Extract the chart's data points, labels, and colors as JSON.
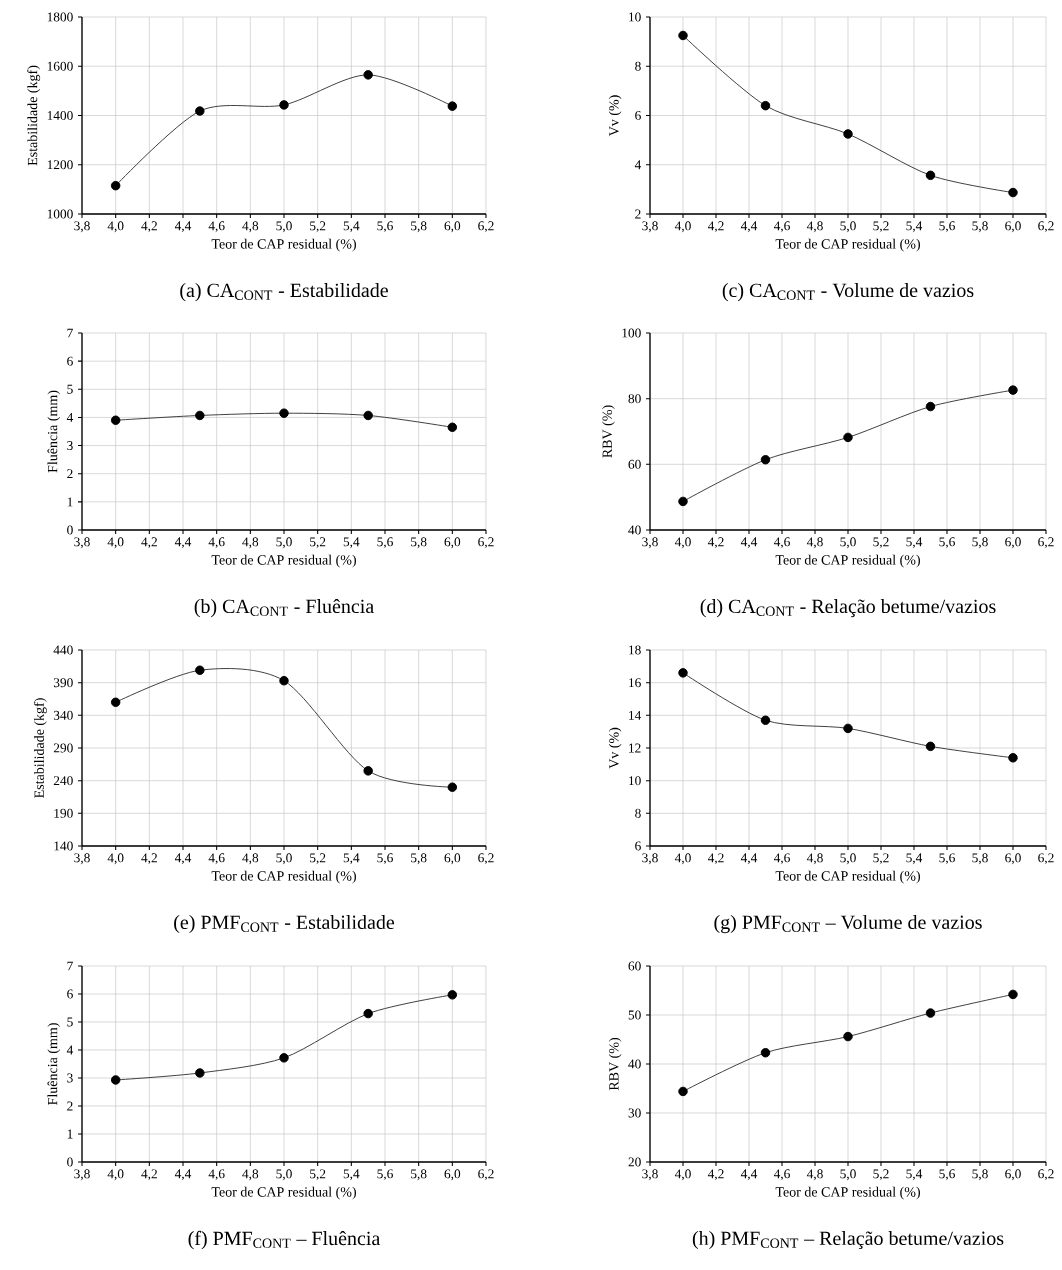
{
  "chart_data": [
    {
      "type": "line",
      "title": "(a) CA$_{CONT}$ - Estabilidade",
      "xlabel": "Teor de CAP residual (%)",
      "ylabel": "Estabilidade (kgf)",
      "x": [
        4.0,
        4.5,
        5.0,
        5.5,
        6.0
      ],
      "values": [
        1115,
        1418,
        1443,
        1565,
        1438
      ],
      "color": "#333333",
      "marker": "circle",
      "grid": true,
      "xlim": [
        3.8,
        6.2
      ],
      "xticks": [
        {
          "value": 3.8,
          "label": "3,8"
        },
        {
          "value": 4.0,
          "label": "4,0"
        },
        {
          "value": 4.2,
          "label": "4,2"
        },
        {
          "value": 4.4,
          "label": "4,4"
        },
        {
          "value": 4.6,
          "label": "4,6"
        },
        {
          "value": 4.8,
          "label": "4,8"
        },
        {
          "value": 5.0,
          "label": "5,0"
        },
        {
          "value": 5.2,
          "label": "5,2"
        },
        {
          "value": 5.4,
          "label": "5,4"
        },
        {
          "value": 5.6,
          "label": "5,6"
        },
        {
          "value": 5.8,
          "label": "5,8"
        },
        {
          "value": 6.0,
          "label": "6,0"
        },
        {
          "value": 6.2,
          "label": "6,2"
        }
      ],
      "ylim": [
        1000,
        1800
      ],
      "yticks": [
        1000,
        1200,
        1400,
        1600,
        1800
      ]
    },
    {
      "type": "line",
      "title": "(c) CA$_{CONT}$ - Volume de vazios",
      "xlabel": "Teor de CAP residual (%)",
      "ylabel": "Vv (%)",
      "x": [
        4.0,
        4.5,
        5.0,
        5.5,
        6.0
      ],
      "values": [
        9.25,
        6.4,
        5.25,
        3.57,
        2.87
      ],
      "color": "#333333",
      "marker": "circle",
      "grid": true,
      "xlim": [
        3.8,
        6.2
      ],
      "xticks": [
        {
          "value": 3.8,
          "label": "3,8"
        },
        {
          "value": 4.0,
          "label": "4,0"
        },
        {
          "value": 4.2,
          "label": "4,2"
        },
        {
          "value": 4.4,
          "label": "4,4"
        },
        {
          "value": 4.6,
          "label": "4,6"
        },
        {
          "value": 4.8,
          "label": "4,8"
        },
        {
          "value": 5.0,
          "label": "5,0"
        },
        {
          "value": 5.2,
          "label": "5,2"
        },
        {
          "value": 5.4,
          "label": "5,4"
        },
        {
          "value": 5.6,
          "label": "5,6"
        },
        {
          "value": 5.8,
          "label": "5,8"
        },
        {
          "value": 6.0,
          "label": "6,0"
        },
        {
          "value": 6.2,
          "label": "6,2"
        }
      ],
      "ylim": [
        2,
        10
      ],
      "yticks": [
        2,
        4,
        6,
        8,
        10
      ]
    },
    {
      "type": "line",
      "title": "(b) CA$_{CONT}$ - Fluência",
      "xlabel": "Teor de CAP residual (%)",
      "ylabel": "Fluência (mm)",
      "x": [
        4.0,
        4.5,
        5.0,
        5.5,
        6.0
      ],
      "values": [
        3.9,
        4.07,
        4.15,
        4.07,
        3.65
      ],
      "color": "#333333",
      "marker": "circle",
      "grid": true,
      "xlim": [
        3.8,
        6.2
      ],
      "xticks": [
        {
          "value": 3.8,
          "label": "3,8"
        },
        {
          "value": 4.0,
          "label": "4,0"
        },
        {
          "value": 4.2,
          "label": "4,2"
        },
        {
          "value": 4.4,
          "label": "4,4"
        },
        {
          "value": 4.6,
          "label": "4,6"
        },
        {
          "value": 4.8,
          "label": "4,8"
        },
        {
          "value": 5.0,
          "label": "5,0"
        },
        {
          "value": 5.2,
          "label": "5,2"
        },
        {
          "value": 5.4,
          "label": "5,4"
        },
        {
          "value": 5.6,
          "label": "5,6"
        },
        {
          "value": 5.8,
          "label": "5,8"
        },
        {
          "value": 6.0,
          "label": "6,0"
        },
        {
          "value": 6.2,
          "label": "6,2"
        }
      ],
      "ylim": [
        0,
        7
      ],
      "yticks": [
        0,
        1,
        2,
        3,
        4,
        5,
        6,
        7
      ]
    },
    {
      "type": "line",
      "title": "(d) CA$_{CONT}$ - Relação betume/vazios",
      "xlabel": "Teor de CAP residual (%)",
      "ylabel": "RBV (%)",
      "x": [
        4.0,
        4.5,
        5.0,
        5.5,
        6.0
      ],
      "values": [
        48.7,
        61.4,
        68.2,
        77.6,
        82.6
      ],
      "color": "#333333",
      "marker": "circle",
      "grid": true,
      "xlim": [
        3.8,
        6.2
      ],
      "xticks": [
        {
          "value": 3.8,
          "label": "3,8"
        },
        {
          "value": 4.0,
          "label": "4,0"
        },
        {
          "value": 4.2,
          "label": "4,2"
        },
        {
          "value": 4.4,
          "label": "4,4"
        },
        {
          "value": 4.6,
          "label": "4,6"
        },
        {
          "value": 4.8,
          "label": "4,8"
        },
        {
          "value": 5.0,
          "label": "5,0"
        },
        {
          "value": 5.2,
          "label": "5,2"
        },
        {
          "value": 5.4,
          "label": "5,4"
        },
        {
          "value": 5.6,
          "label": "5,6"
        },
        {
          "value": 5.8,
          "label": "5,8"
        },
        {
          "value": 6.0,
          "label": "6,0"
        },
        {
          "value": 6.2,
          "label": "6,2"
        }
      ],
      "ylim": [
        40,
        100
      ],
      "yticks": [
        40,
        60,
        80,
        100
      ]
    },
    {
      "type": "line",
      "title": "(e) PMF$_{CONT}$ - Estabilidade",
      "xlabel": "Teor de CAP residual (%)",
      "ylabel": "Estabilidade (kgf)",
      "x": [
        4.0,
        4.5,
        5.0,
        5.5,
        6.0
      ],
      "values": [
        360,
        409,
        393,
        255,
        230
      ],
      "color": "#333333",
      "marker": "circle",
      "grid": true,
      "xlim": [
        3.8,
        6.2
      ],
      "xticks": [
        {
          "value": 3.8,
          "label": "3,8"
        },
        {
          "value": 4.0,
          "label": "4,0"
        },
        {
          "value": 4.2,
          "label": "4,2"
        },
        {
          "value": 4.4,
          "label": "4,4"
        },
        {
          "value": 4.6,
          "label": "4,6"
        },
        {
          "value": 4.8,
          "label": "4,8"
        },
        {
          "value": 5.0,
          "label": "5,0"
        },
        {
          "value": 5.2,
          "label": "5,2"
        },
        {
          "value": 5.4,
          "label": "5,4"
        },
        {
          "value": 5.6,
          "label": "5,6"
        },
        {
          "value": 5.8,
          "label": "5,8"
        },
        {
          "value": 6.0,
          "label": "6,0"
        },
        {
          "value": 6.2,
          "label": "6,2"
        }
      ],
      "ylim": [
        140,
        440
      ],
      "yticks": [
        140,
        190,
        240,
        290,
        340,
        390,
        440
      ]
    },
    {
      "type": "line",
      "title": "(g) PMF$_{CONT}$ – Volume de vazios",
      "xlabel": "Teor de CAP residual (%)",
      "ylabel": "Vv (%)",
      "x": [
        4.0,
        4.5,
        5.0,
        5.5,
        6.0
      ],
      "values": [
        16.6,
        13.7,
        13.2,
        12.1,
        11.4
      ],
      "color": "#333333",
      "marker": "circle",
      "grid": true,
      "xlim": [
        3.8,
        6.2
      ],
      "xticks": [
        {
          "value": 3.8,
          "label": "3,8"
        },
        {
          "value": 4.0,
          "label": "4,0"
        },
        {
          "value": 4.2,
          "label": "4,2"
        },
        {
          "value": 4.4,
          "label": "4,4"
        },
        {
          "value": 4.6,
          "label": "4,6"
        },
        {
          "value": 4.8,
          "label": "4,8"
        },
        {
          "value": 5.0,
          "label": "5,0"
        },
        {
          "value": 5.2,
          "label": "5,2"
        },
        {
          "value": 5.4,
          "label": "5,4"
        },
        {
          "value": 5.6,
          "label": "5,6"
        },
        {
          "value": 5.8,
          "label": "5,8"
        },
        {
          "value": 6.0,
          "label": "6,0"
        },
        {
          "value": 6.2,
          "label": "6,2"
        }
      ],
      "ylim": [
        6,
        18
      ],
      "yticks": [
        6,
        8,
        10,
        12,
        14,
        16,
        18
      ]
    },
    {
      "type": "line",
      "title": "(f) PMF$_{CONT}$ – Fluência",
      "xlabel": "Teor de CAP residual (%)",
      "ylabel": "Fluência (mm)",
      "x": [
        4.0,
        4.5,
        5.0,
        5.5,
        6.0
      ],
      "values": [
        2.93,
        3.18,
        3.72,
        5.3,
        5.97
      ],
      "color": "#333333",
      "marker": "circle",
      "grid": true,
      "xlim": [
        3.8,
        6.2
      ],
      "xticks": [
        {
          "value": 3.8,
          "label": "3,8"
        },
        {
          "value": 4.0,
          "label": "4,0"
        },
        {
          "value": 4.2,
          "label": "4,2"
        },
        {
          "value": 4.4,
          "label": "4,4"
        },
        {
          "value": 4.6,
          "label": "4,6"
        },
        {
          "value": 4.8,
          "label": "4,8"
        },
        {
          "value": 5.0,
          "label": "5,0"
        },
        {
          "value": 5.2,
          "label": "5,2"
        },
        {
          "value": 5.4,
          "label": "5,4"
        },
        {
          "value": 5.6,
          "label": "5,6"
        },
        {
          "value": 5.8,
          "label": "5,8"
        },
        {
          "value": 6.0,
          "label": "6,0"
        },
        {
          "value": 6.2,
          "label": "6,2"
        }
      ],
      "ylim": [
        0,
        7
      ],
      "yticks": [
        0,
        1,
        2,
        3,
        4,
        5,
        6,
        7
      ]
    },
    {
      "type": "line",
      "title": "(h) PMF$_{CONT}$ – Relação betume/vazios",
      "xlabel": "Teor de CAP residual (%)",
      "ylabel": "RBV (%)",
      "x": [
        4.0,
        4.5,
        5.0,
        5.5,
        6.0
      ],
      "values": [
        34.4,
        42.3,
        45.6,
        50.4,
        54.2
      ],
      "color": "#333333",
      "marker": "circle",
      "grid": true,
      "xlim": [
        3.8,
        6.2
      ],
      "xticks": [
        {
          "value": 3.8,
          "label": "3,8"
        },
        {
          "value": 4.0,
          "label": "4,0"
        },
        {
          "value": 4.2,
          "label": "4,2"
        },
        {
          "value": 4.4,
          "label": "4,4"
        },
        {
          "value": 4.6,
          "label": "4,6"
        },
        {
          "value": 4.8,
          "label": "4,8"
        },
        {
          "value": 5.0,
          "label": "5,0"
        },
        {
          "value": 5.2,
          "label": "5,2"
        },
        {
          "value": 5.4,
          "label": "5,4"
        },
        {
          "value": 5.6,
          "label": "5,6"
        },
        {
          "value": 5.8,
          "label": "5,8"
        },
        {
          "value": 6.0,
          "label": "6,0"
        },
        {
          "value": 6.2,
          "label": "6,2"
        }
      ],
      "ylim": [
        20,
        60
      ],
      "yticks": [
        20,
        30,
        40,
        50,
        60
      ]
    }
  ]
}
